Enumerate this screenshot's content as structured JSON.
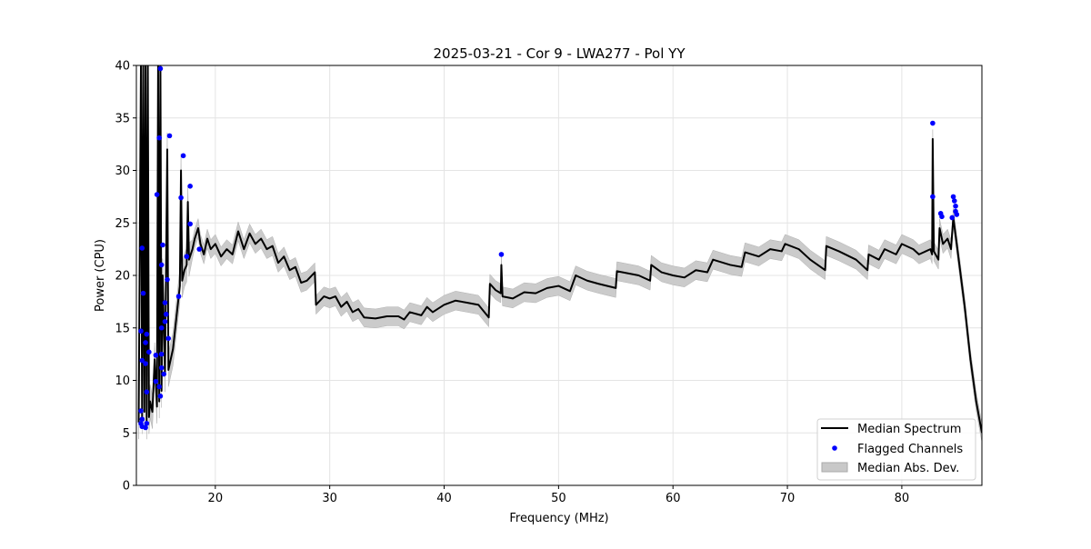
{
  "chart_data": {
    "type": "line",
    "title": "2025-03-21 - Cor 9 - LWA277 - Pol YY",
    "xlabel": "Frequency (MHz)",
    "ylabel": "Power (CPU)",
    "xlim": [
      13.1,
      87.0
    ],
    "ylim": [
      0,
      40
    ],
    "xticks": [
      20,
      30,
      40,
      50,
      60,
      70,
      80
    ],
    "yticks": [
      0,
      5,
      10,
      15,
      20,
      25,
      30,
      35,
      40
    ],
    "grid": true,
    "legend": {
      "placement": "bottom-right",
      "entries": [
        "Median Spectrum",
        "Flagged Channels",
        "Median Abs. Dev."
      ]
    },
    "colors": {
      "median": "#000000",
      "flagged": "#0000ff",
      "mad": "#c8c8c8"
    },
    "mad": 0.9,
    "mad_low_freq": 1.6,
    "median_spectrum": [
      [
        13.3,
        6
      ],
      [
        13.5,
        40
      ],
      [
        13.6,
        6.5
      ],
      [
        13.7,
        40
      ],
      [
        13.8,
        7
      ],
      [
        13.9,
        40
      ],
      [
        14.0,
        6
      ],
      [
        14.1,
        40
      ],
      [
        14.2,
        6.5
      ],
      [
        14.3,
        8
      ],
      [
        14.5,
        7
      ],
      [
        14.7,
        12
      ],
      [
        14.9,
        7.5
      ],
      [
        15.0,
        40
      ],
      [
        15.1,
        8
      ],
      [
        15.2,
        40
      ],
      [
        15.3,
        9
      ],
      [
        15.4,
        20
      ],
      [
        15.6,
        10.5
      ],
      [
        15.8,
        32
      ],
      [
        15.9,
        11
      ],
      [
        16.0,
        11.5
      ],
      [
        16.3,
        13
      ],
      [
        16.6,
        16
      ],
      [
        16.9,
        19
      ],
      [
        17.0,
        30
      ],
      [
        17.1,
        19.5
      ],
      [
        17.3,
        20.5
      ],
      [
        17.5,
        21
      ],
      [
        17.6,
        27
      ],
      [
        17.7,
        21.5
      ],
      [
        18.0,
        22.5
      ],
      [
        18.2,
        23.5
      ],
      [
        18.5,
        24.5
      ],
      [
        18.7,
        23
      ],
      [
        19.0,
        22
      ],
      [
        19.3,
        23.5
      ],
      [
        19.6,
        22.5
      ],
      [
        20,
        23
      ],
      [
        20.5,
        21.8
      ],
      [
        21,
        22.5
      ],
      [
        21.5,
        22
      ],
      [
        22,
        24.2
      ],
      [
        22.5,
        22.5
      ],
      [
        23,
        24
      ],
      [
        23.5,
        23
      ],
      [
        24,
        23.5
      ],
      [
        24.5,
        22.5
      ],
      [
        25,
        22.8
      ],
      [
        25.5,
        21.2
      ],
      [
        26,
        21.8
      ],
      [
        26.5,
        20.5
      ],
      [
        27,
        20.8
      ],
      [
        27.5,
        19.3
      ],
      [
        28,
        19.5
      ],
      [
        28.7,
        20.3
      ],
      [
        28.8,
        17.2
      ],
      [
        29.5,
        18
      ],
      [
        30,
        17.8
      ],
      [
        30.5,
        18
      ],
      [
        31,
        17
      ],
      [
        31.5,
        17.5
      ],
      [
        32,
        16.5
      ],
      [
        32.5,
        16.8
      ],
      [
        33,
        16
      ],
      [
        34,
        15.9
      ],
      [
        35,
        16.1
      ],
      [
        36,
        16.1
      ],
      [
        36.5,
        15.8
      ],
      [
        37,
        16.5
      ],
      [
        38,
        16.2
      ],
      [
        38.5,
        17
      ],
      [
        39,
        16.5
      ],
      [
        40,
        17.2
      ],
      [
        41,
        17.6
      ],
      [
        42,
        17.4
      ],
      [
        43,
        17.2
      ],
      [
        43.9,
        16
      ],
      [
        44.0,
        19.2
      ],
      [
        44.5,
        18.6
      ],
      [
        44.95,
        18.3
      ],
      [
        45.0,
        21
      ],
      [
        45.1,
        18
      ],
      [
        46,
        17.8
      ],
      [
        47,
        18.4
      ],
      [
        48,
        18.3
      ],
      [
        49,
        18.8
      ],
      [
        50,
        19
      ],
      [
        51,
        18.5
      ],
      [
        51.5,
        20
      ],
      [
        52.5,
        19.5
      ],
      [
        53.5,
        19.2
      ],
      [
        55,
        18.8
      ],
      [
        55.1,
        20.4
      ],
      [
        57,
        20
      ],
      [
        58,
        19.5
      ],
      [
        58.1,
        21
      ],
      [
        59,
        20.3
      ],
      [
        60,
        20
      ],
      [
        61,
        19.8
      ],
      [
        62,
        20.5
      ],
      [
        63,
        20.3
      ],
      [
        63.5,
        21.5
      ],
      [
        65,
        21
      ],
      [
        66,
        20.8
      ],
      [
        66.3,
        22.2
      ],
      [
        67.5,
        21.8
      ],
      [
        68.5,
        22.5
      ],
      [
        69.5,
        22.3
      ],
      [
        69.8,
        23
      ],
      [
        71,
        22.5
      ],
      [
        72,
        21.5
      ],
      [
        73.3,
        20.5
      ],
      [
        73.4,
        22.8
      ],
      [
        74.5,
        22.3
      ],
      [
        76,
        21.5
      ],
      [
        77,
        20.5
      ],
      [
        77.1,
        22
      ],
      [
        78,
        21.5
      ],
      [
        78.5,
        22.5
      ],
      [
        79.5,
        22
      ],
      [
        80,
        23
      ],
      [
        81,
        22.5
      ],
      [
        81.5,
        22
      ],
      [
        82.5,
        22.5
      ],
      [
        82.65,
        22
      ],
      [
        82.7,
        33
      ],
      [
        82.8,
        22.3
      ],
      [
        83.2,
        21.5
      ],
      [
        83.3,
        24.5
      ],
      [
        83.6,
        23
      ],
      [
        84,
        23.5
      ],
      [
        84.3,
        22.5
      ],
      [
        84.5,
        25.5
      ],
      [
        84.8,
        23
      ],
      [
        85.5,
        17
      ],
      [
        86,
        12
      ],
      [
        86.5,
        8
      ],
      [
        87,
        5
      ]
    ],
    "flagged_channels": [
      [
        15.2,
        39.7
      ],
      [
        16.0,
        33.3
      ],
      [
        17.2,
        31.4
      ],
      [
        17.8,
        28.5
      ],
      [
        15.1,
        33.1
      ],
      [
        14.9,
        27.7
      ],
      [
        17.0,
        27.4
      ],
      [
        17.8,
        24.9
      ],
      [
        13.6,
        22.6
      ],
      [
        15.4,
        22.9
      ],
      [
        17.5,
        21.8
      ],
      [
        18.6,
        22.5
      ],
      [
        15.3,
        21.0
      ],
      [
        15.8,
        19.6
      ],
      [
        13.7,
        18.3
      ],
      [
        16.8,
        18.0
      ],
      [
        15.6,
        17.4
      ],
      [
        15.7,
        16.3
      ],
      [
        15.6,
        15.6
      ],
      [
        15.3,
        15.0
      ],
      [
        13.5,
        14.7
      ],
      [
        14.0,
        14.4
      ],
      [
        13.9,
        13.6
      ],
      [
        15.9,
        14.0
      ],
      [
        14.2,
        12.7
      ],
      [
        14.8,
        12.4
      ],
      [
        15.3,
        12.5
      ],
      [
        13.6,
        11.9
      ],
      [
        13.9,
        11.6
      ],
      [
        15.3,
        11.2
      ],
      [
        15.5,
        10.6
      ],
      [
        15.1,
        9.4
      ],
      [
        14.0,
        8.9
      ],
      [
        15.2,
        8.5
      ],
      [
        14.8,
        9.9
      ],
      [
        13.5,
        7.1
      ],
      [
        13.6,
        6.3
      ],
      [
        14.0,
        5.9
      ],
      [
        13.9,
        5.5
      ],
      [
        13.6,
        5.6
      ],
      [
        13.5,
        5.9
      ],
      [
        45.0,
        22.0
      ],
      [
        82.7,
        34.5
      ],
      [
        82.7,
        27.5
      ],
      [
        83.4,
        25.9
      ],
      [
        83.5,
        25.6
      ],
      [
        84.5,
        27.5
      ],
      [
        84.6,
        27.1
      ],
      [
        84.7,
        26.6
      ],
      [
        84.7,
        26.1
      ],
      [
        84.8,
        25.8
      ],
      [
        84.4,
        25.5
      ]
    ]
  }
}
